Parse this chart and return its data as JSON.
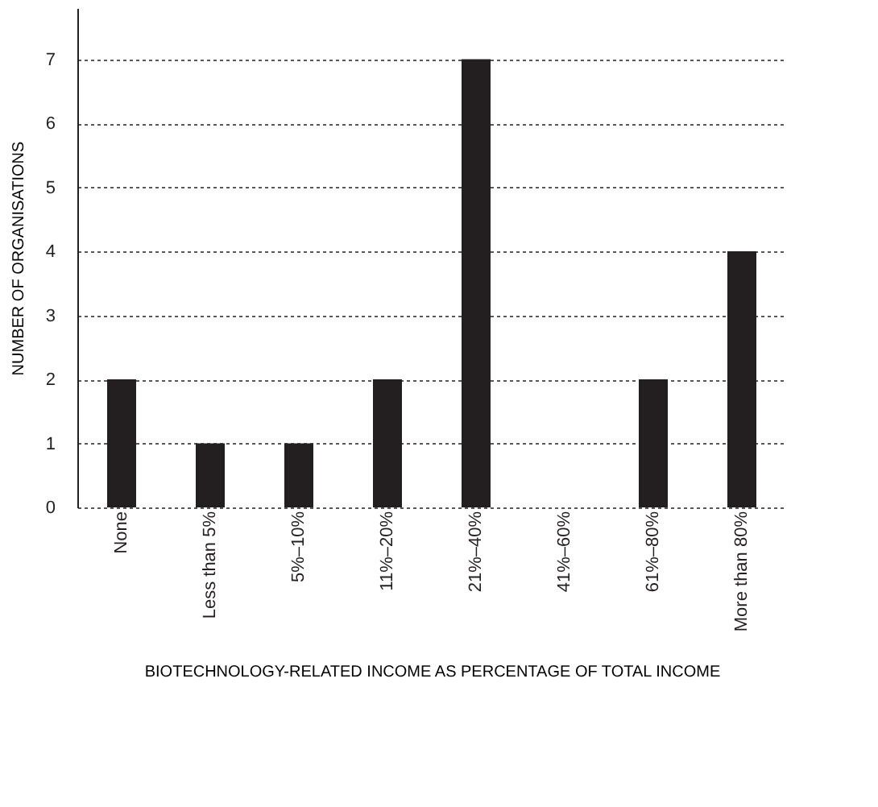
{
  "chart_data": {
    "type": "bar",
    "xlabel": "BIOTECHNOLOGY-RELATED INCOME AS PERCENTAGE OF TOTAL INCOME",
    "ylabel": "NUMBER OF ORGANISATIONS",
    "categories": [
      "None",
      "Less than 5%",
      "5%–10%",
      "11%–20%",
      "21%–40%",
      "41%–60%",
      "61%–80%",
      "More than 80%"
    ],
    "values": [
      2,
      1,
      1,
      2,
      7,
      0,
      2,
      4
    ],
    "color": "#231f20",
    "ylim": [
      0,
      7.8
    ],
    "yticks": [
      0,
      1,
      2,
      3,
      4,
      5,
      6,
      7
    ],
    "grid": "y"
  }
}
